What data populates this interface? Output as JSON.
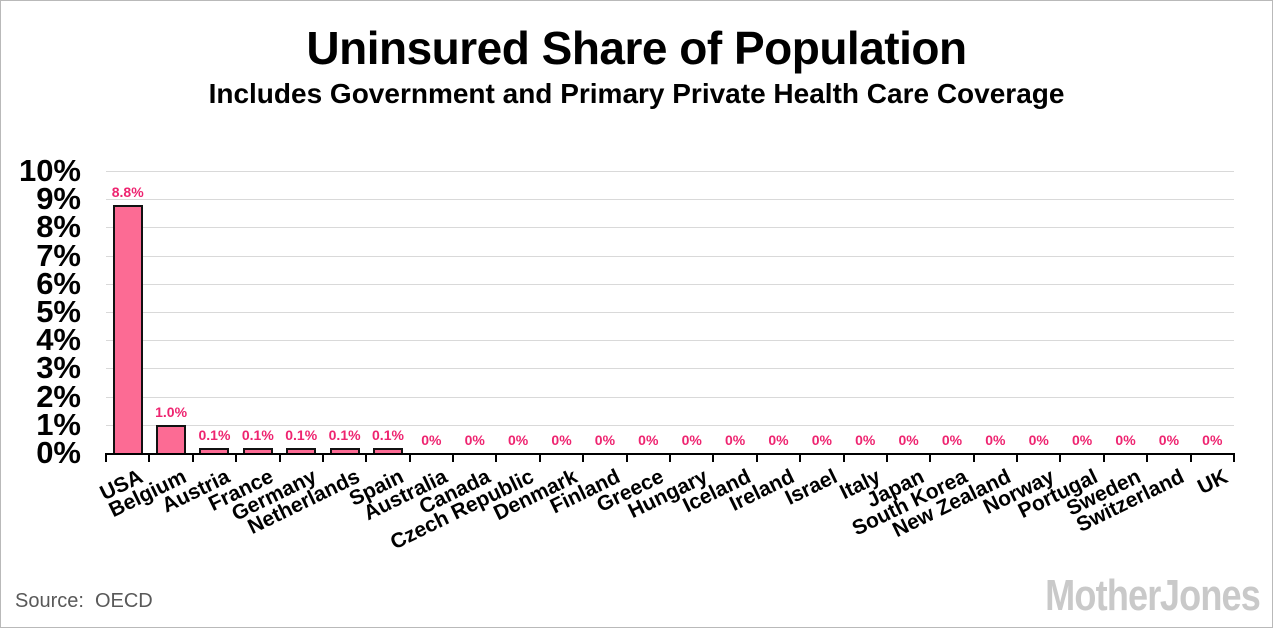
{
  "chart_data": {
    "type": "bar",
    "title": "Uninsured Share of Population",
    "subtitle": "Includes Government and Primary Private Health Care Coverage",
    "categories": [
      "USA",
      "Belgium",
      "Austria",
      "France",
      "Germany",
      "Netherlands",
      "Spain",
      "Australia",
      "Canada",
      "Czech Republic",
      "Denmark",
      "Finland",
      "Greece",
      "Hungary",
      "Iceland",
      "Ireland",
      "Israel",
      "Italy",
      "Japan",
      "South Korea",
      "New Zealand",
      "Norway",
      "Portugal",
      "Sweden",
      "Switzerland",
      "UK"
    ],
    "values": [
      8.8,
      1.0,
      0.1,
      0.1,
      0.1,
      0.1,
      0.1,
      0,
      0,
      0,
      0,
      0,
      0,
      0,
      0,
      0,
      0,
      0,
      0,
      0,
      0,
      0,
      0,
      0,
      0,
      0
    ],
    "bar_labels": [
      "8.8%",
      "1.0%",
      "0.1%",
      "0.1%",
      "0.1%",
      "0.1%",
      "0.1%",
      "0%",
      "0%",
      "0%",
      "0%",
      "0%",
      "0%",
      "0%",
      "0%",
      "0%",
      "0%",
      "0%",
      "0%",
      "0%",
      "0%",
      "0%",
      "0%",
      "0%",
      "0%",
      "0%"
    ],
    "xlabel": "",
    "ylabel": "",
    "ylim": [
      0,
      10
    ],
    "ytick_labels": [
      "0%",
      "1%",
      "2%",
      "3%",
      "4%",
      "5%",
      "6%",
      "7%",
      "8%",
      "9%",
      "10%"
    ],
    "grid": true,
    "legend": false
  },
  "footer": {
    "source_label": "Source:",
    "source_value": "OECD",
    "logo_text": "Mother Jones"
  },
  "colors": {
    "bar_fill": "#fc6b94",
    "bar_border": "#111111",
    "data_label": "#ee2470",
    "gridline": "#d9d9d9",
    "axis": "#000000",
    "title_text": "#000000",
    "source_text": "#595959",
    "logo_text": "#c9c9c9"
  }
}
